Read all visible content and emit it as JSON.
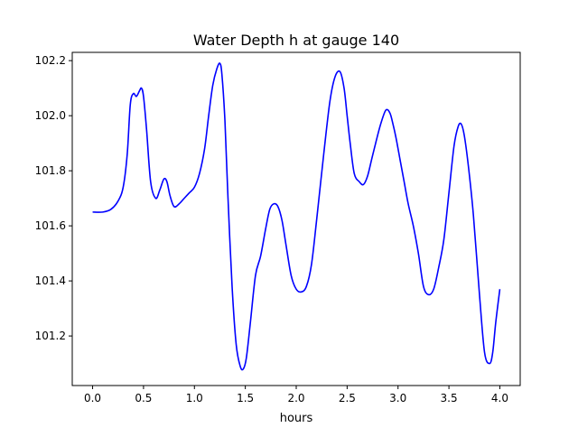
{
  "chart_data": {
    "type": "line",
    "title": "Water Depth h at gauge 140",
    "xlabel": "hours",
    "ylabel": "",
    "xlim": [
      -0.2,
      4.2
    ],
    "ylim": [
      101.02,
      102.23
    ],
    "xticks": [
      0.0,
      0.5,
      1.0,
      1.5,
      2.0,
      2.5,
      3.0,
      3.5,
      4.0
    ],
    "xtick_labels": [
      "0.0",
      "0.5",
      "1.0",
      "1.5",
      "2.0",
      "2.5",
      "3.0",
      "3.5",
      "4.0"
    ],
    "yticks": [
      101.2,
      101.4,
      101.6,
      101.8,
      102.0,
      102.2
    ],
    "ytick_labels": [
      "101.2",
      "101.4",
      "101.6",
      "101.8",
      "102.0",
      "102.2"
    ],
    "grid": false,
    "line_color": "#0000ff",
    "series": [
      {
        "x": [
          0.0,
          0.1,
          0.18,
          0.25,
          0.3,
          0.34,
          0.37,
          0.4,
          0.43,
          0.46,
          0.48,
          0.5,
          0.53,
          0.57,
          0.62,
          0.66,
          0.7,
          0.73,
          0.76,
          0.8,
          0.85,
          0.9,
          0.95,
          1.0,
          1.05,
          1.1,
          1.14,
          1.18,
          1.22,
          1.25,
          1.27,
          1.3,
          1.33,
          1.37,
          1.41,
          1.45,
          1.48,
          1.51,
          1.55,
          1.6,
          1.65,
          1.7,
          1.74,
          1.78,
          1.82,
          1.86,
          1.9,
          1.95,
          2.0,
          2.05,
          2.1,
          2.15,
          2.2,
          2.27,
          2.33,
          2.38,
          2.43,
          2.47,
          2.5,
          2.53,
          2.57,
          2.62,
          2.66,
          2.7,
          2.74,
          2.78,
          2.83,
          2.88,
          2.92,
          2.95,
          2.98,
          3.02,
          3.06,
          3.1,
          3.15,
          3.2,
          3.25,
          3.3,
          3.35,
          3.4,
          3.45,
          3.5,
          3.55,
          3.59,
          3.62,
          3.65,
          3.69,
          3.74,
          3.8,
          3.85,
          3.9,
          3.93,
          3.96,
          4.0
        ],
        "y": [
          101.65,
          101.65,
          101.66,
          101.69,
          101.74,
          101.86,
          102.04,
          102.08,
          102.07,
          102.09,
          102.1,
          102.07,
          101.95,
          101.76,
          101.7,
          101.73,
          101.77,
          101.76,
          101.71,
          101.67,
          101.68,
          101.7,
          101.72,
          101.74,
          101.79,
          101.88,
          102.0,
          102.11,
          102.17,
          102.19,
          102.15,
          101.98,
          101.7,
          101.38,
          101.17,
          101.09,
          101.08,
          101.12,
          101.25,
          101.42,
          101.49,
          101.59,
          101.66,
          101.68,
          101.67,
          101.62,
          101.53,
          101.42,
          101.37,
          101.36,
          101.38,
          101.46,
          101.62,
          101.86,
          102.05,
          102.14,
          102.16,
          102.1,
          102.0,
          101.9,
          101.79,
          101.76,
          101.75,
          101.78,
          101.84,
          101.9,
          101.97,
          102.02,
          102.01,
          101.97,
          101.92,
          101.84,
          101.76,
          101.68,
          101.6,
          101.5,
          101.38,
          101.35,
          101.37,
          101.45,
          101.55,
          101.72,
          101.89,
          101.96,
          101.97,
          101.93,
          101.82,
          101.64,
          101.35,
          101.14,
          101.1,
          101.14,
          101.25,
          101.37
        ]
      }
    ]
  }
}
